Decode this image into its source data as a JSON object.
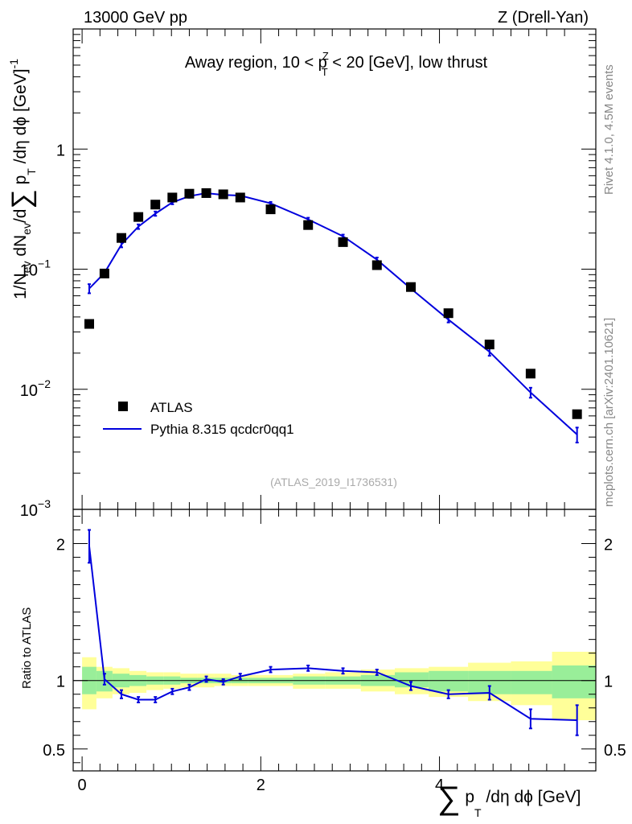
{
  "header": {
    "left": "13000 GeV pp",
    "right": "Z (Drell-Yan)"
  },
  "side_text": {
    "rivet": "Rivet 4.1.0,  4.5M events",
    "source": "mcplots.cern.ch [arXiv:2401.10621]"
  },
  "chart_data": [
    {
      "type": "scatter",
      "panel": "main",
      "title_parts": [
        "Away region, 10 < p",
        "Z",
        "T",
        " < 20 [GeV], low thrust"
      ],
      "ylabel_parts": [
        "1/N",
        "ev",
        " dN",
        "ev",
        "/d",
        "∑",
        " p",
        "T",
        " /dη dϕ  [GeV]",
        "-1"
      ],
      "yscale": "log",
      "ylim": [
        0.001,
        10
      ],
      "y_ticks": [
        {
          "value": 0.001,
          "mant": "10",
          "exp": "−3"
        },
        {
          "value": 0.01,
          "mant": "10",
          "exp": "−2"
        },
        {
          "value": 0.1,
          "mant": "10",
          "exp": "−1"
        },
        {
          "value": 1,
          "mant": "1",
          "exp": ""
        }
      ],
      "xlim": [
        -0.1,
        5.75
      ],
      "annotation": "(ATLAS_2019_I1736531)",
      "legend": {
        "position": "bottom-left",
        "entries": [
          {
            "label": "ATLAS",
            "style": "marker",
            "color": "#000000"
          },
          {
            "label": "Pythia 8.315 qcdcr0qq1",
            "style": "line",
            "color": "#0000dd"
          }
        ]
      },
      "series": [
        {
          "name": "ATLAS",
          "color": "#000000",
          "x": [
            0.08,
            0.25,
            0.44,
            0.63,
            0.82,
            1.01,
            1.2,
            1.39,
            1.58,
            1.77,
            2.11,
            2.53,
            2.92,
            3.3,
            3.68,
            4.1,
            4.56,
            5.02,
            5.54
          ],
          "y": [
            0.035,
            0.092,
            0.182,
            0.272,
            0.345,
            0.395,
            0.425,
            0.43,
            0.42,
            0.395,
            0.315,
            0.233,
            0.168,
            0.108,
            0.071,
            0.043,
            0.0236,
            0.0135,
            0.0062
          ]
        },
        {
          "name": "Pythia 8.315 qcdcr0qq1",
          "color": "#0000dd",
          "x": [
            0.08,
            0.25,
            0.44,
            0.63,
            0.82,
            1.01,
            1.2,
            1.39,
            1.58,
            1.77,
            2.11,
            2.53,
            2.92,
            3.3,
            3.68,
            4.1,
            4.56,
            5.02,
            5.54
          ],
          "y": [
            0.069,
            0.093,
            0.16,
            0.226,
            0.29,
            0.36,
            0.405,
            0.43,
            0.415,
            0.41,
            0.353,
            0.26,
            0.188,
            0.12,
            0.069,
            0.038,
            0.0205,
            0.0094,
            0.0042
          ],
          "err": [
            0.006,
            0.005,
            0.008,
            0.01,
            0.012,
            0.013,
            0.012,
            0.012,
            0.012,
            0.012,
            0.01,
            0.008,
            0.006,
            0.005,
            0.003,
            0.002,
            0.0015,
            0.0009,
            0.0006
          ]
        }
      ]
    },
    {
      "type": "line",
      "panel": "ratio",
      "ylabel": "Ratio to ATLAS",
      "ylim": [
        0.34,
        2.25
      ],
      "y_ticks": [
        {
          "value": 0.5,
          "label": "0.5"
        },
        {
          "value": 1,
          "label": "1"
        },
        {
          "value": 2,
          "label": "2"
        }
      ],
      "xlim": [
        -0.1,
        5.75
      ],
      "x_ticks": [
        {
          "value": 0,
          "label": "0"
        },
        {
          "value": 2,
          "label": "2"
        },
        {
          "value": 4,
          "label": "4"
        }
      ],
      "xlabel_parts": [
        "∑",
        " p",
        "T",
        " /dη dϕ [GeV]"
      ],
      "bins": [
        0,
        0.16,
        0.34,
        0.53,
        0.72,
        0.91,
        1.1,
        1.29,
        1.48,
        1.67,
        1.86,
        2.36,
        2.72,
        3.12,
        3.5,
        3.88,
        4.32,
        4.8,
        5.26,
        5.75
      ],
      "band_green": [
        [
          0.9,
          1.1
        ],
        [
          0.92,
          1.07
        ],
        [
          0.95,
          1.05
        ],
        [
          0.96,
          1.04
        ],
        [
          0.97,
          1.03
        ],
        [
          0.97,
          1.03
        ],
        [
          0.98,
          1.02
        ],
        [
          0.98,
          1.02
        ],
        [
          0.98,
          1.02
        ],
        [
          0.98,
          1.02
        ],
        [
          0.98,
          1.02
        ],
        [
          0.97,
          1.03
        ],
        [
          0.97,
          1.03
        ],
        [
          0.96,
          1.04
        ],
        [
          0.95,
          1.06
        ],
        [
          0.92,
          1.07
        ],
        [
          0.9,
          1.07
        ],
        [
          0.9,
          1.07
        ],
        [
          0.87,
          1.11
        ]
      ],
      "band_yellow": [
        [
          0.79,
          1.17
        ],
        [
          0.87,
          1.1
        ],
        [
          0.9,
          1.09
        ],
        [
          0.91,
          1.07
        ],
        [
          0.93,
          1.06
        ],
        [
          0.94,
          1.06
        ],
        [
          0.95,
          1.05
        ],
        [
          0.95,
          1.05
        ],
        [
          0.96,
          1.05
        ],
        [
          0.96,
          1.04
        ],
        [
          0.96,
          1.04
        ],
        [
          0.94,
          1.05
        ],
        [
          0.94,
          1.06
        ],
        [
          0.92,
          1.08
        ],
        [
          0.9,
          1.09
        ],
        [
          0.88,
          1.1
        ],
        [
          0.85,
          1.13
        ],
        [
          0.82,
          1.14
        ],
        [
          0.71,
          1.21
        ]
      ],
      "series": [
        {
          "name": "Pythia 8.315 qcdcr0qq1",
          "color": "#0000dd",
          "x": [
            0.08,
            0.25,
            0.44,
            0.63,
            0.82,
            1.01,
            1.2,
            1.39,
            1.58,
            1.77,
            2.11,
            2.53,
            2.92,
            3.3,
            3.68,
            4.1,
            4.56,
            5.02,
            5.54
          ],
          "y": [
            1.98,
            1.01,
            0.9,
            0.86,
            0.86,
            0.92,
            0.95,
            1.01,
            0.99,
            1.03,
            1.08,
            1.09,
            1.07,
            1.06,
            0.96,
            0.9,
            0.91,
            0.72,
            0.71
          ],
          "err": [
            0.12,
            0.04,
            0.03,
            0.02,
            0.02,
            0.02,
            0.02,
            0.02,
            0.02,
            0.02,
            0.02,
            0.02,
            0.02,
            0.02,
            0.03,
            0.03,
            0.05,
            0.07,
            0.11
          ]
        }
      ]
    }
  ]
}
